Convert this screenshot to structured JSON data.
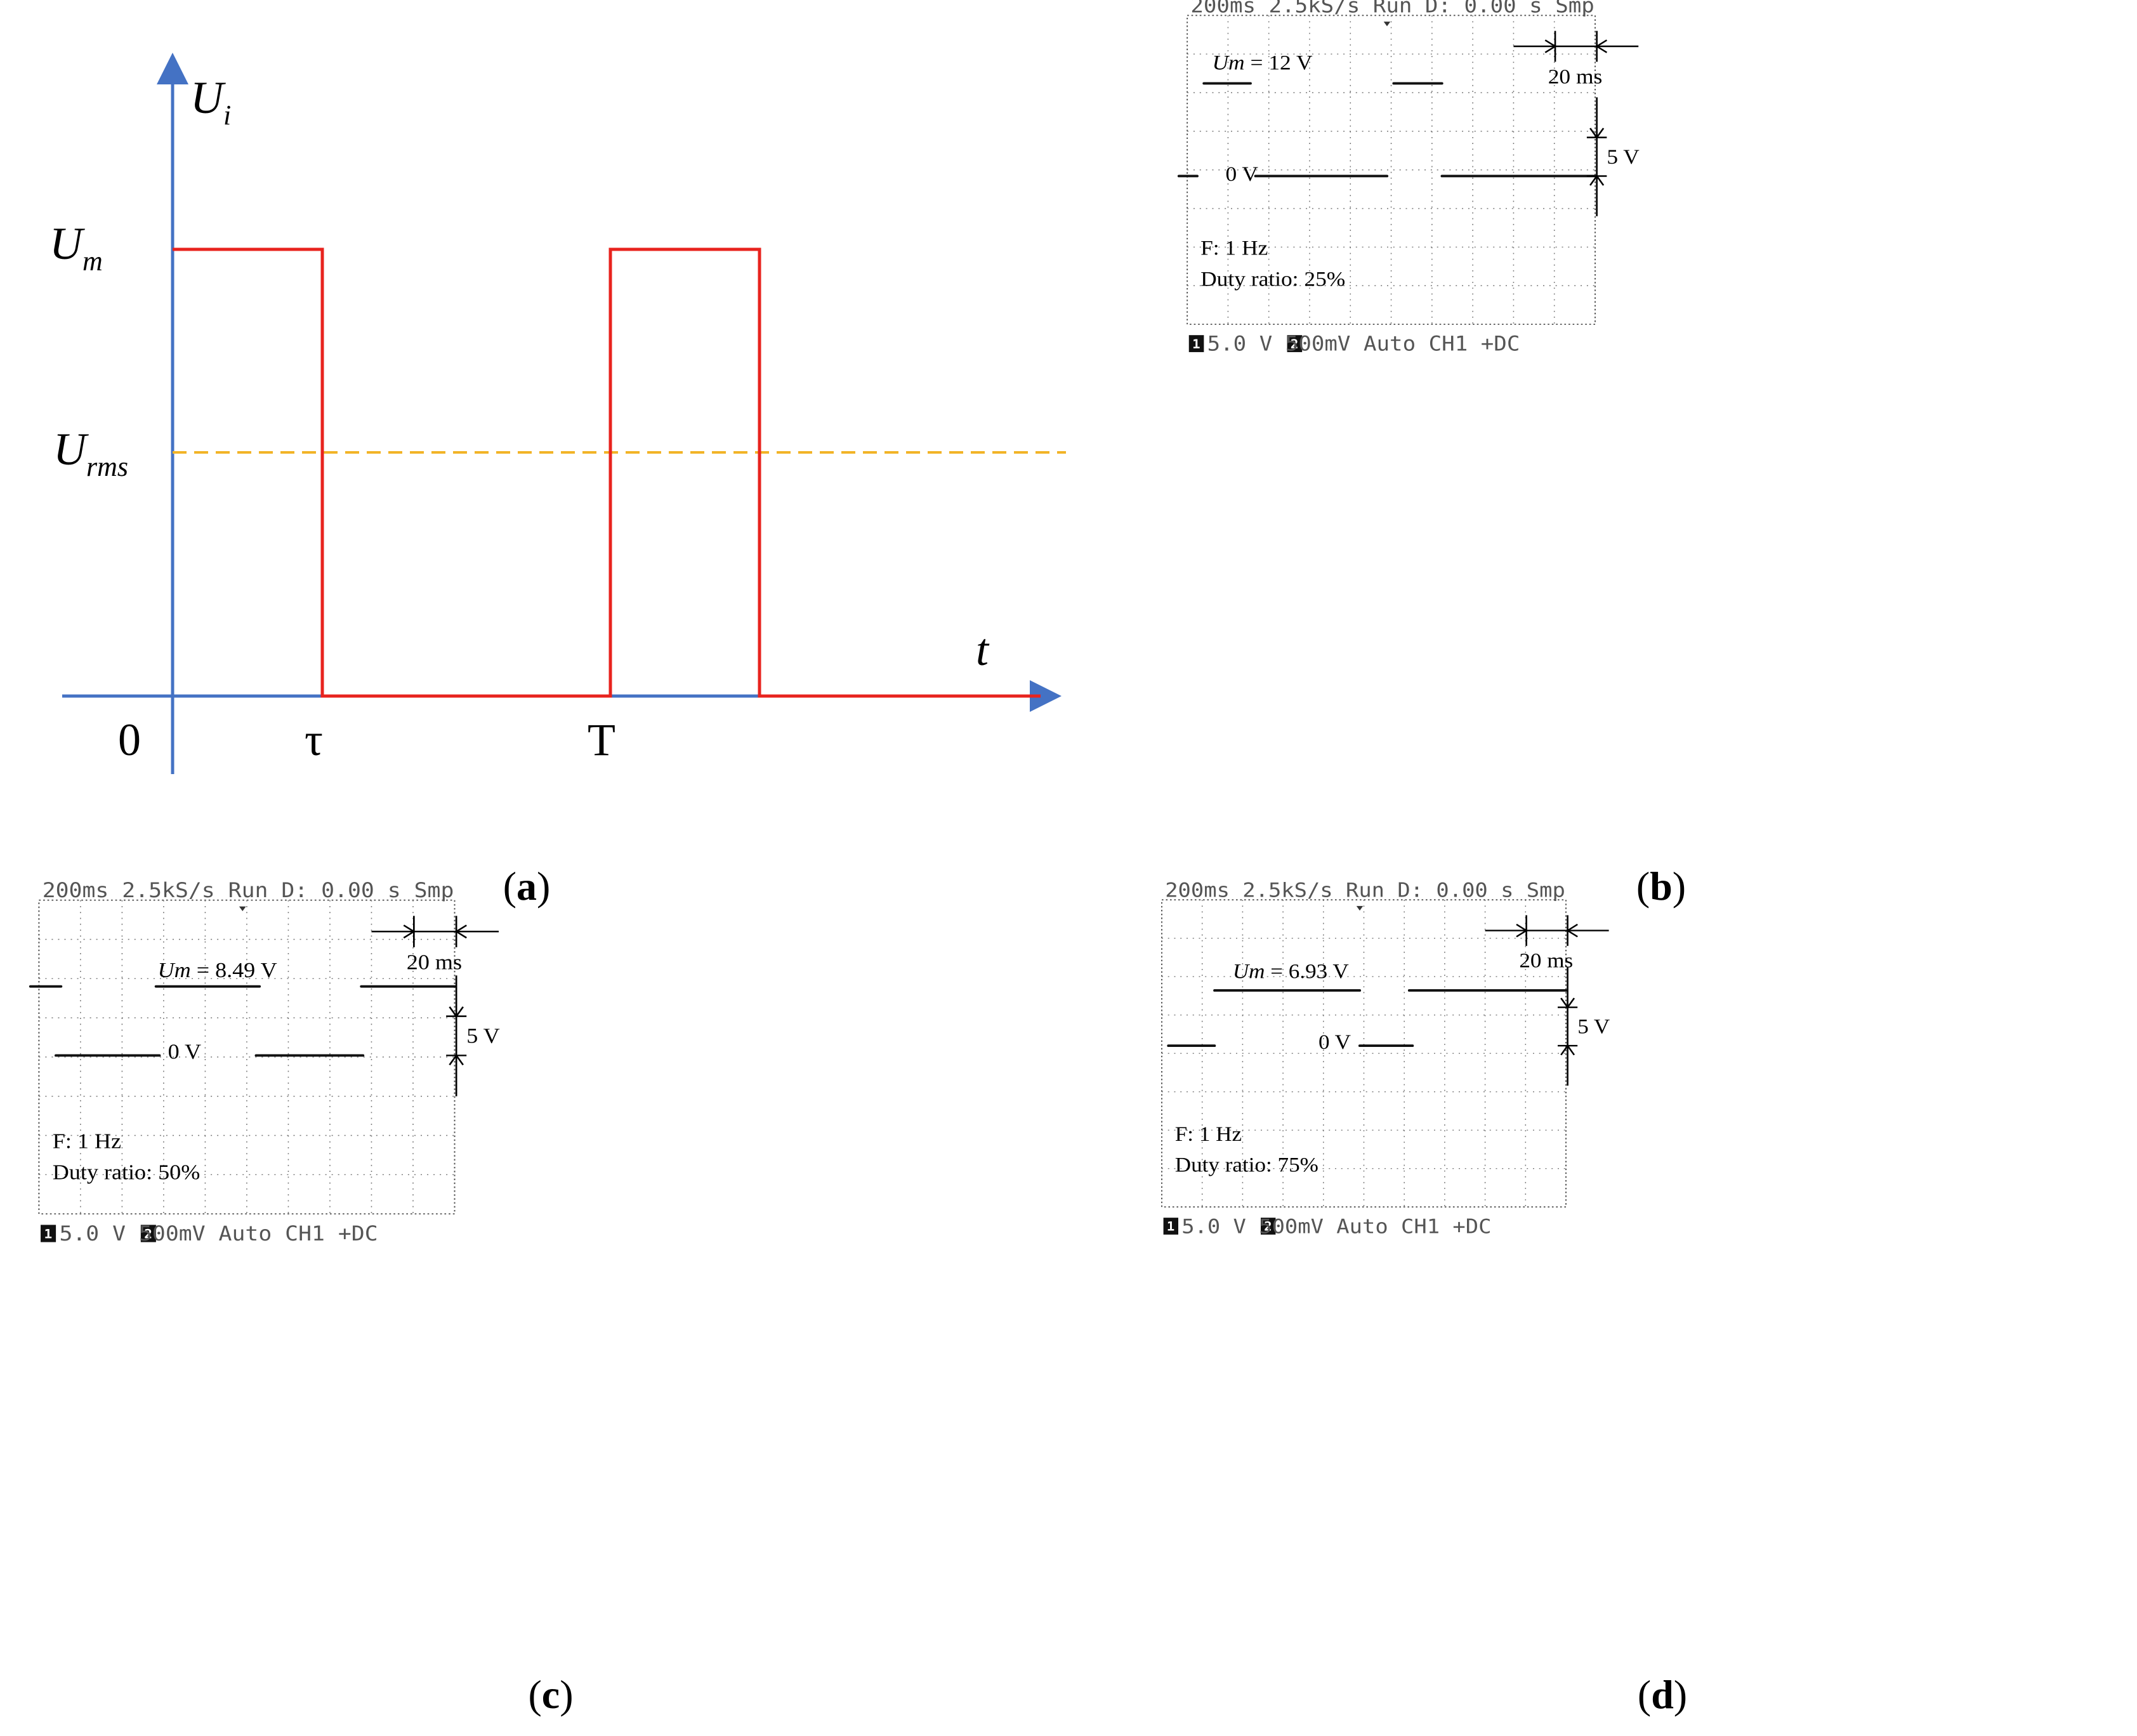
{
  "panel_a": {
    "y_label_main": "U",
    "y_label_sub": "i",
    "um_main": "U",
    "um_sub": "m",
    "urms_main": "U",
    "urms_sub": "rms",
    "x_label": "t",
    "origin": "0",
    "tau": "τ",
    "period": "T",
    "caption_open": "(",
    "caption_letter": "a",
    "caption_close": ")",
    "colors": {
      "axis": "#4472C4",
      "signal": "#E8231E",
      "rms": "#F2B427"
    },
    "waveform": {
      "time": [
        "0",
        "τ",
        "T"
      ],
      "levels": [
        "Um",
        "0"
      ]
    }
  },
  "scopes": [
    {
      "id": "b",
      "top_status": "200ms   2.5kS/s  Run  D:  0.00  s  Smp",
      "bottom_status": "5.0 V     500mV    Auto  CH1  +DC",
      "ch1_marker": "1",
      "ch2_marker": "2",
      "um_label": "Um",
      "um_value": " = 12 V",
      "zero_label": "0 V",
      "time_scale": "20 ms",
      "volt_scale": "5 V",
      "freq": "F: 1 Hz",
      "duty": "Duty ratio: 25%",
      "caption_open": "(",
      "caption_letter": "b",
      "caption_close": ")",
      "duty_ratio": 0.25,
      "amplitude_V": 12
    },
    {
      "id": "c",
      "top_status": "200ms   2.5kS/s  Run  D:  0.00  s  Smp",
      "bottom_status": "5.0 V     500mV    Auto  CH1  +DC",
      "ch1_marker": "1",
      "ch2_marker": "2",
      "um_label": "Um",
      "um_value": " = 8.49 V",
      "zero_label": "0 V",
      "time_scale": "20 ms",
      "volt_scale": "5 V",
      "freq": "F: 1 Hz",
      "duty": "Duty ratio: 50%",
      "caption_open": "(",
      "caption_letter": "c",
      "caption_close": ")",
      "duty_ratio": 0.5,
      "amplitude_V": 8.49
    },
    {
      "id": "d",
      "top_status": "200ms   2.5kS/s  Run  D:  0.00  s  Smp",
      "bottom_status": "5.0 V     500mV    Auto  CH1  +DC",
      "ch1_marker": "1",
      "ch2_marker": "2",
      "um_label": "Um",
      "um_value": " = 6.93 V",
      "zero_label": "0 V",
      "time_scale": "20 ms",
      "volt_scale": "5 V",
      "freq": "F: 1 Hz",
      "duty": "Duty ratio: 75%",
      "caption_open": "(",
      "caption_letter": "d",
      "caption_close": ")",
      "duty_ratio": 0.75,
      "amplitude_V": 6.93
    }
  ]
}
